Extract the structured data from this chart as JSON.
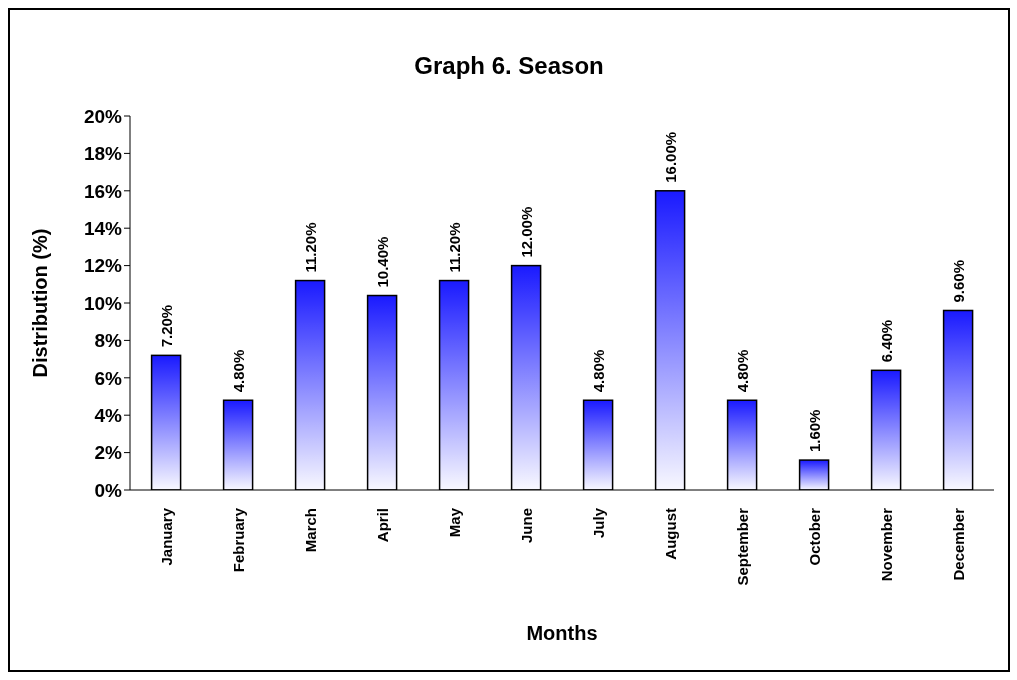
{
  "chart_data": {
    "type": "bar",
    "title": "Graph 6. Season",
    "xlabel": "Months",
    "ylabel": "Distribution (%)",
    "categories": [
      "January",
      "February",
      "March",
      "April",
      "May",
      "June",
      "July",
      "August",
      "September",
      "October",
      "November",
      "December"
    ],
    "values": [
      7.2,
      4.8,
      11.2,
      10.4,
      11.2,
      12.0,
      4.8,
      16.0,
      4.8,
      1.6,
      6.4,
      9.6
    ],
    "value_labels": [
      "7.20%",
      "4.80%",
      "11.20%",
      "10.40%",
      "11.20%",
      "12.00%",
      "4.80%",
      "16.00%",
      "4.80%",
      "1.60%",
      "6.40%",
      "9.60%"
    ],
    "color": "#1a1aff",
    "ylim": [
      0,
      20
    ],
    "yticks": [
      {
        "value": 0,
        "label": "0%"
      },
      {
        "value": 2,
        "label": "2%"
      },
      {
        "value": 4,
        "label": "4%"
      },
      {
        "value": 6,
        "label": "6%"
      },
      {
        "value": 8,
        "label": "8%"
      },
      {
        "value": 10,
        "label": "10%"
      },
      {
        "value": 12,
        "label": "12%"
      },
      {
        "value": 14,
        "label": "14%"
      },
      {
        "value": 16,
        "label": "16%"
      },
      {
        "value": 18,
        "label": "18%"
      },
      {
        "value": 20,
        "label": "20%"
      }
    ],
    "grid": false,
    "legend": false
  }
}
